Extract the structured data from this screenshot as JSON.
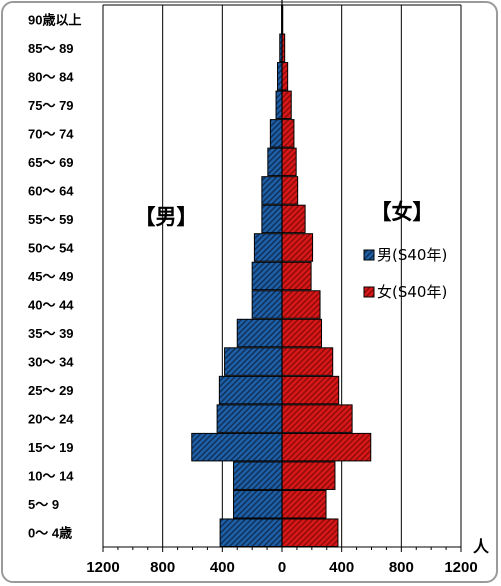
{
  "chart_data": {
    "type": "bar",
    "orientation": "horizontal",
    "layout": "population-pyramid",
    "age_groups": [
      "0～ 4歳",
      "5～ 9",
      "10～ 14",
      "15～ 19",
      "20～ 24",
      "25～ 29",
      "30～ 34",
      "35～ 39",
      "40～ 44",
      "45～ 49",
      "50～ 54",
      "55～ 59",
      "60～ 64",
      "65～ 69",
      "70～ 74",
      "75～ 79",
      "80～ 84",
      "85～ 89",
      "90歳以上"
    ],
    "series": [
      {
        "name": "男(S40年)",
        "side": "left",
        "color": "#1f5fa6",
        "values": [
          415,
          325,
          325,
          605,
          435,
          420,
          385,
          300,
          200,
          200,
          185,
          135,
          135,
          95,
          78,
          40,
          30,
          15,
          3
        ]
      },
      {
        "name": "女(S40年)",
        "side": "right",
        "color": "#cc1111",
        "values": [
          375,
          295,
          355,
          595,
          470,
          380,
          340,
          265,
          255,
          195,
          205,
          155,
          105,
          95,
          80,
          62,
          38,
          18,
          5
        ]
      }
    ],
    "x_ticks": [
      1200,
      800,
      400,
      0,
      400,
      800,
      1200
    ],
    "xlim": [
      -1200,
      1200
    ],
    "x_unit": "人",
    "side_labels": {
      "left": "【男】",
      "right": "【女】"
    },
    "grid": "vertical",
    "legend_position": "right"
  }
}
